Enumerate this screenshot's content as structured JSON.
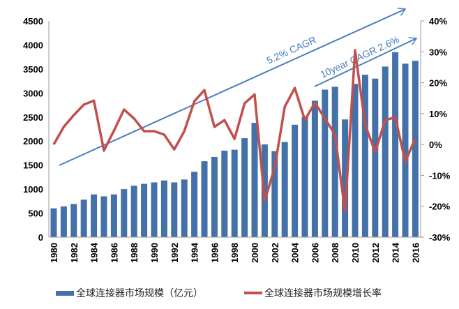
{
  "chart_data": {
    "type": "bar+line",
    "categories": [
      "1980",
      "1981",
      "1982",
      "1983",
      "1984",
      "1985",
      "1986",
      "1987",
      "1988",
      "1989",
      "1990",
      "1991",
      "1992",
      "1993",
      "1994",
      "1995",
      "1996",
      "1997",
      "1998",
      "1999",
      "2000",
      "2001",
      "2002",
      "2003",
      "2004",
      "2005",
      "2006",
      "2007",
      "2008",
      "2009",
      "2010",
      "2011",
      "2012",
      "2013",
      "2014",
      "2015",
      "2016"
    ],
    "x_tick_labels": [
      "1980",
      "1982",
      "1984",
      "1986",
      "1988",
      "1990",
      "1992",
      "1994",
      "1996",
      "1998",
      "2000",
      "2002",
      "2004",
      "2006",
      "2008",
      "2010",
      "2012",
      "2014",
      "2016"
    ],
    "series": [
      {
        "name": "全球连接器市场规模（亿元）",
        "type": "bar",
        "axis": "left",
        "color": "#4471a8",
        "values": [
          600,
          640,
          690,
          780,
          890,
          850,
          890,
          1000,
          1070,
          1110,
          1140,
          1180,
          1140,
          1200,
          1360,
          1580,
          1670,
          1800,
          1820,
          2060,
          2380,
          1930,
          1790,
          1980,
          2340,
          2500,
          2840,
          3070,
          3130,
          2450,
          3190,
          3380,
          3300,
          3550,
          3850,
          3610,
          3670
        ]
      },
      {
        "name": "全球连接器市场规模增长率",
        "type": "line",
        "axis": "right",
        "unit": "%",
        "color": "#c0504d",
        "values": [
          0,
          5.7,
          9.5,
          12.9,
          14.2,
          -2,
          4.5,
          11.3,
          8.4,
          4.3,
          4.3,
          3.2,
          -1.6,
          4.3,
          14,
          17.6,
          5.7,
          7.9,
          1.8,
          13.3,
          16.2,
          -18.3,
          -7.4,
          12.2,
          18.3,
          7.9,
          13.5,
          8.4,
          3.2,
          -21.7,
          30.5,
          6.5,
          -2.5,
          7.9,
          8.8,
          -5.6,
          2
        ]
      }
    ],
    "left_axis": {
      "ylim": [
        0,
        4500
      ],
      "ticks": [
        "0",
        "500",
        "1000",
        "1500",
        "2000",
        "2500",
        "3000",
        "3500",
        "4000",
        "4500"
      ]
    },
    "right_axis": {
      "ylim": [
        -30,
        40
      ],
      "ticks": [
        "-30%",
        "-20%",
        "-10%",
        "0%",
        "10%",
        "20%",
        "30%",
        "40%"
      ]
    },
    "annotations": [
      {
        "text": "5.2% CAGR",
        "color": "#4a7ebf"
      },
      {
        "text": "10year CAGR 2.6%",
        "color": "#4a7ebf"
      }
    ],
    "grid": false,
    "legend_position": "bottom"
  }
}
